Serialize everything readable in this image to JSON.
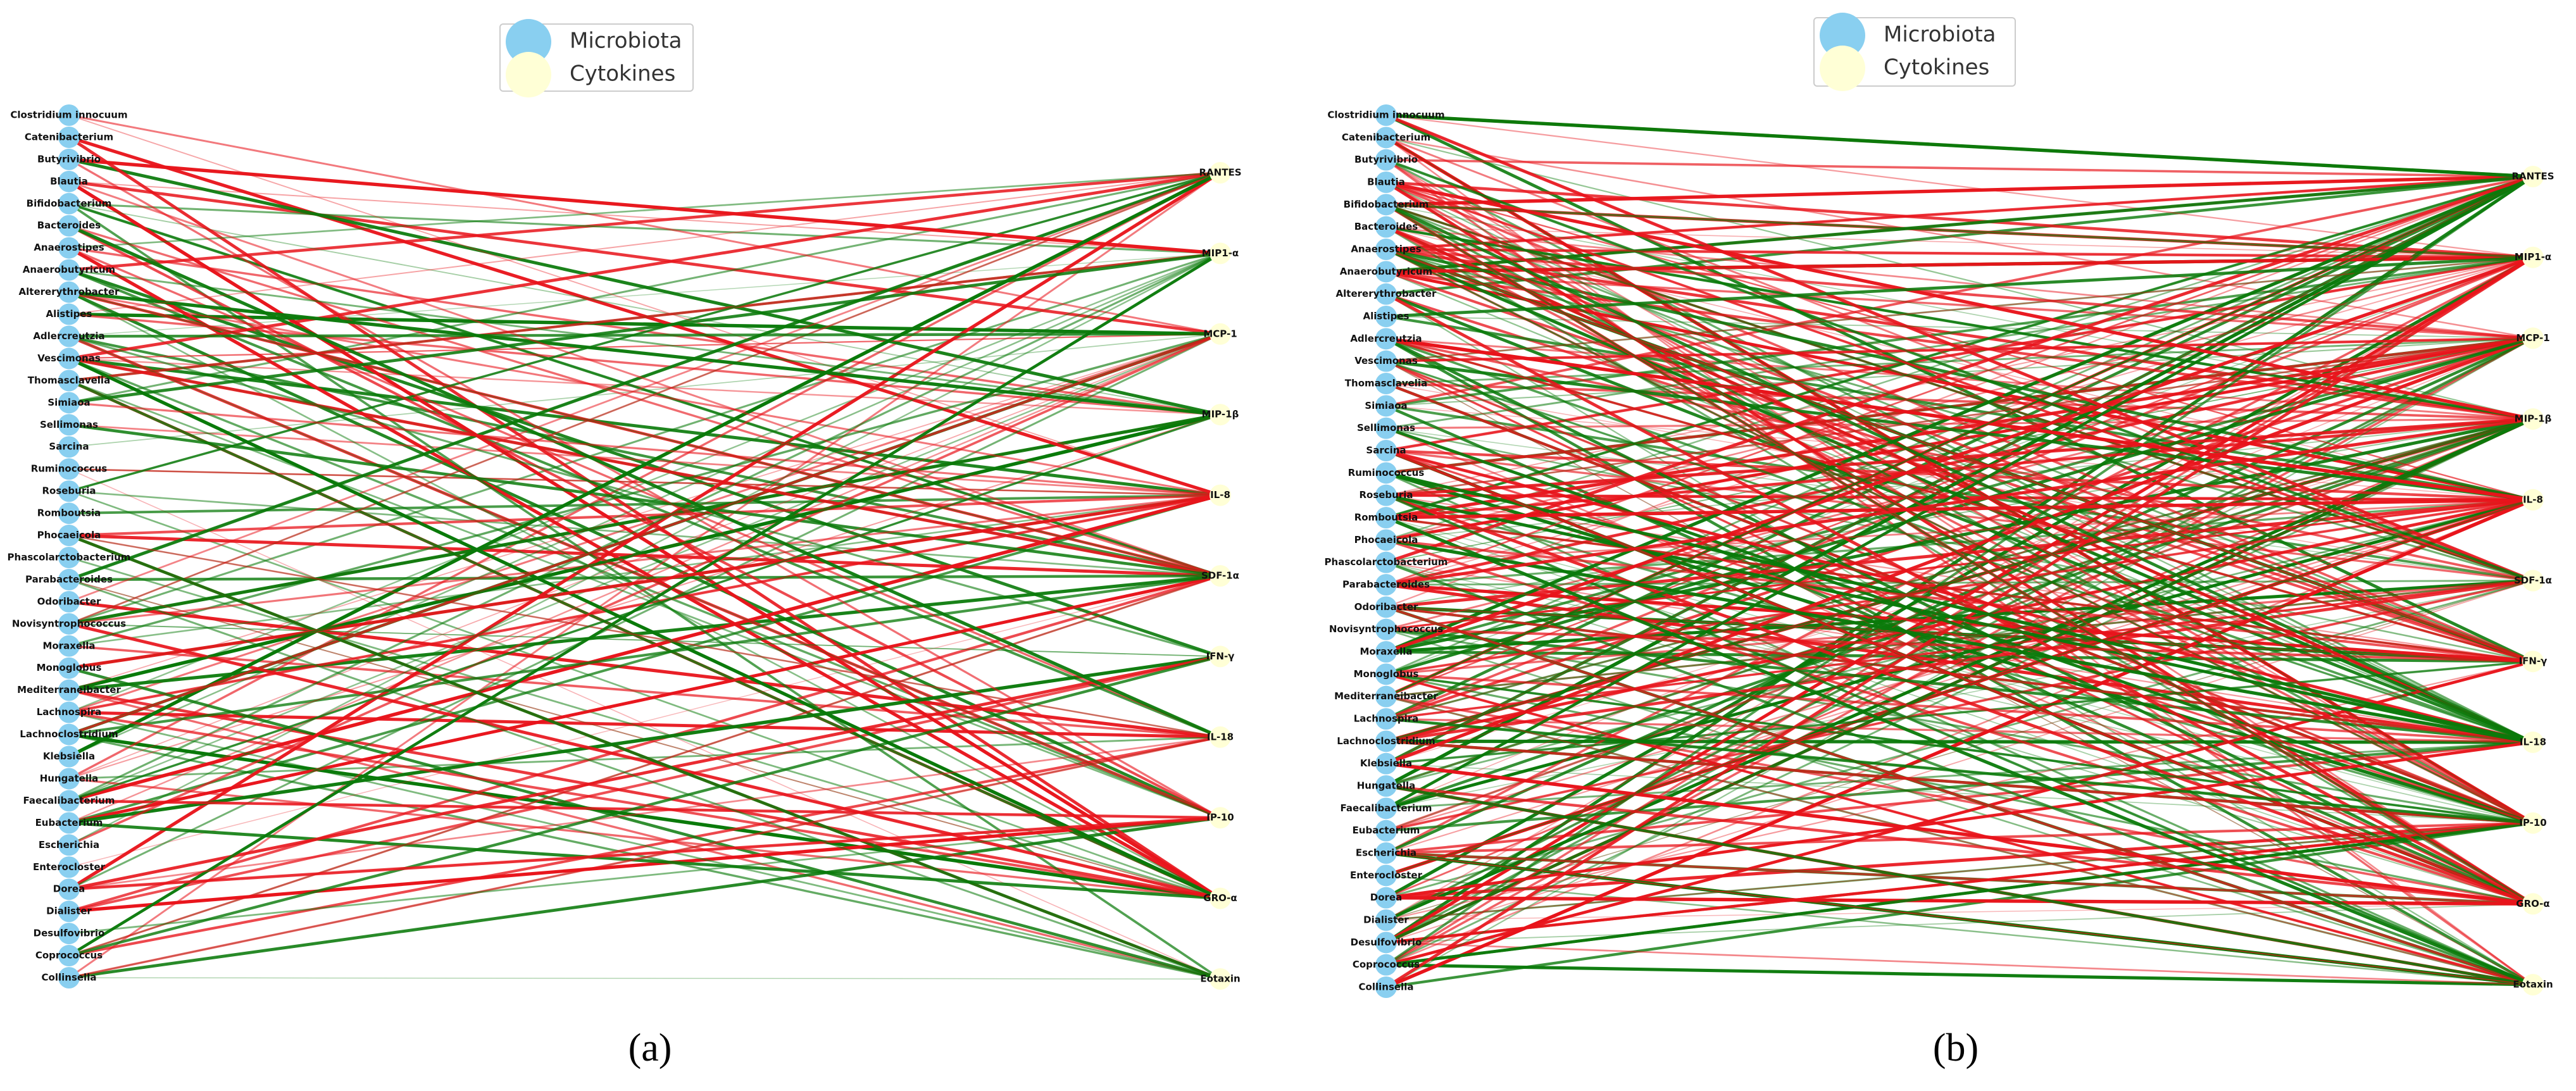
{
  "legend": {
    "microbiota": "Microbiota",
    "cytokines": "Cytokines"
  },
  "microbiota": [
    "Clostridium innocuum",
    "Catenibacterium",
    "Butyrivibrio",
    "Blautia",
    "Bifidobacterium",
    "Bacteroides",
    "Anaerostipes",
    "Anaerobutyricum",
    "Altererythrobacter",
    "Alistipes",
    "Adlercreutzia",
    "Vescimonas",
    "Thomasclavelia",
    "Simiaoa",
    "Sellimonas",
    "Sarcina",
    "Ruminococcus",
    "Roseburia",
    "Romboutsia",
    "Phocaeicola",
    "Phascolarctobacterium",
    "Parabacteroides",
    "Odoribacter",
    "Novisyntrophococcus",
    "Moraxella",
    "Monoglobus",
    "Mediterraneibacter",
    "Lachnospira",
    "Lachnoclostridium",
    "Klebsiella",
    "Hungatella",
    "Faecalibacterium",
    "Eubacterium",
    "Escherichia",
    "Enterocloster",
    "Dorea",
    "Dialister",
    "Desulfovibrio",
    "Coprococcus",
    "Collinsella"
  ],
  "cytokines": [
    "RANTES",
    "MIP1-α",
    "MCP-1",
    "MIP-1β",
    "IL-8",
    "SDF-1α",
    "IFN-γ",
    "IL-18",
    "IP-10",
    "GRO-α",
    "Eotaxin"
  ],
  "panels": [
    {
      "caption": "(a)"
    },
    {
      "caption": "(b)"
    }
  ]
}
